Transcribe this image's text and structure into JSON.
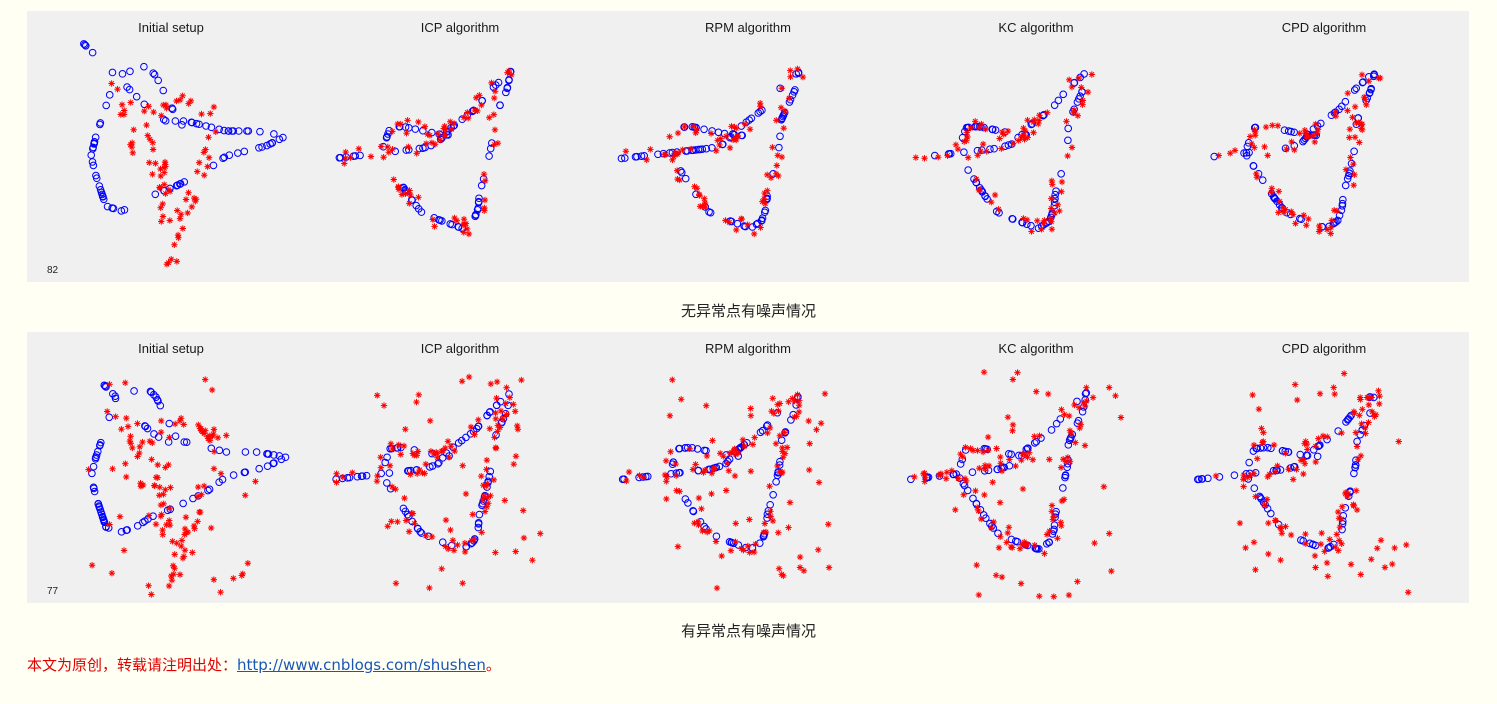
{
  "chart_data": [
    {
      "type": "scatter",
      "caption": "无异常点有噪声情况",
      "frame_number": "82",
      "marker_colors": {
        "model": "#0000ff",
        "scene": "#ff0000"
      },
      "subplots": [
        {
          "title": "Initial setup"
        },
        {
          "title": "ICP algorithm"
        },
        {
          "title": "RPM algorithm"
        },
        {
          "title": "KC algorithm"
        },
        {
          "title": "CPD algorithm"
        }
      ]
    },
    {
      "type": "scatter",
      "caption": "有异常点有噪声情况",
      "frame_number": "77",
      "marker_colors": {
        "model": "#0000ff",
        "scene": "#ff0000"
      },
      "subplots": [
        {
          "title": "Initial setup"
        },
        {
          "title": "ICP algorithm"
        },
        {
          "title": "RPM algorithm"
        },
        {
          "title": "KC algorithm"
        },
        {
          "title": "CPD algorithm"
        }
      ]
    }
  ],
  "footer": {
    "prefix": "本文为原创，转载请注明出处：",
    "link_text": "http://www.cnblogs.com/shushen",
    "suffix": "。"
  }
}
